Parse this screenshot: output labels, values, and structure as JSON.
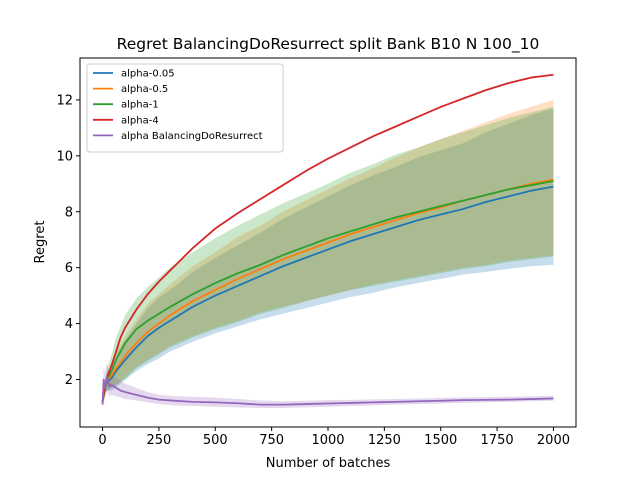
{
  "chart_data": {
    "type": "line",
    "title": "Regret BalancingDoResurrect split Bank B10 N 100_10",
    "xlabel": "Number of batches",
    "ylabel": "Regret",
    "xlim": [
      -100,
      2100
    ],
    "ylim": [
      0.3,
      13.5
    ],
    "xticks": [
      0,
      250,
      500,
      750,
      1000,
      1250,
      1500,
      1750,
      2000
    ],
    "yticks": [
      2,
      4,
      6,
      8,
      10,
      12
    ],
    "legend_position": "top-left",
    "grid": false,
    "series": [
      {
        "name": "alpha-0.05",
        "color": "#1f77b4",
        "x": [
          0,
          10,
          20,
          40,
          60,
          80,
          100,
          150,
          200,
          250,
          300,
          400,
          500,
          600,
          700,
          800,
          900,
          1000,
          1100,
          1200,
          1300,
          1400,
          1500,
          1600,
          1700,
          1800,
          1900,
          2000
        ],
        "y": [
          1.2,
          1.6,
          1.9,
          2.05,
          2.3,
          2.5,
          2.7,
          3.15,
          3.55,
          3.85,
          4.1,
          4.6,
          5.0,
          5.35,
          5.7,
          6.05,
          6.35,
          6.65,
          6.95,
          7.2,
          7.45,
          7.7,
          7.9,
          8.1,
          8.35,
          8.55,
          8.75,
          8.9
        ],
        "band_lower": [
          1.2,
          1.5,
          1.6,
          1.6,
          1.7,
          1.85,
          2.0,
          2.3,
          2.55,
          2.75,
          3.0,
          3.35,
          3.65,
          3.9,
          4.15,
          4.35,
          4.55,
          4.75,
          4.95,
          5.1,
          5.3,
          5.45,
          5.6,
          5.75,
          5.85,
          5.95,
          6.05,
          6.1
        ],
        "band_upper": [
          1.2,
          1.8,
          2.2,
          2.5,
          2.9,
          3.15,
          3.4,
          4.0,
          4.55,
          4.95,
          5.2,
          5.85,
          6.35,
          6.8,
          7.25,
          7.75,
          8.15,
          8.55,
          8.95,
          9.3,
          9.6,
          9.95,
          10.2,
          10.45,
          10.85,
          11.15,
          11.45,
          11.7
        ]
      },
      {
        "name": "alpha-0.5",
        "color": "#ff7f0e",
        "x": [
          0,
          10,
          20,
          40,
          60,
          80,
          100,
          150,
          200,
          250,
          300,
          400,
          500,
          600,
          700,
          800,
          900,
          1000,
          1100,
          1200,
          1300,
          1400,
          1500,
          1600,
          1700,
          1800,
          1900,
          2000
        ],
        "y": [
          1.2,
          1.65,
          1.95,
          2.15,
          2.4,
          2.6,
          2.85,
          3.3,
          3.7,
          4.0,
          4.3,
          4.8,
          5.2,
          5.6,
          5.95,
          6.3,
          6.6,
          6.9,
          7.2,
          7.45,
          7.7,
          7.95,
          8.15,
          8.4,
          8.6,
          8.8,
          9.0,
          9.15
        ],
        "band_lower": [
          1.2,
          1.5,
          1.65,
          1.7,
          1.8,
          1.95,
          2.1,
          2.45,
          2.7,
          2.95,
          3.2,
          3.55,
          3.85,
          4.1,
          4.4,
          4.6,
          4.8,
          5.0,
          5.2,
          5.4,
          5.55,
          5.7,
          5.85,
          6.0,
          6.1,
          6.25,
          6.35,
          6.45
        ],
        "band_upper": [
          1.2,
          1.8,
          2.25,
          2.6,
          3.0,
          3.25,
          3.55,
          4.15,
          4.7,
          5.05,
          5.4,
          6.05,
          6.55,
          7.1,
          7.5,
          8.0,
          8.4,
          8.8,
          9.2,
          9.55,
          9.95,
          10.3,
          10.6,
          10.9,
          11.2,
          11.5,
          11.75,
          12.0
        ]
      },
      {
        "name": "alpha-1",
        "color": "#2ca02c",
        "x": [
          0,
          10,
          20,
          40,
          60,
          80,
          100,
          150,
          200,
          250,
          300,
          400,
          500,
          600,
          700,
          800,
          900,
          1000,
          1100,
          1200,
          1300,
          1400,
          1500,
          1600,
          1700,
          1800,
          1900,
          2000
        ],
        "y": [
          1.2,
          1.7,
          2.0,
          2.3,
          2.7,
          3.0,
          3.3,
          3.8,
          4.1,
          4.35,
          4.6,
          5.05,
          5.45,
          5.8,
          6.1,
          6.45,
          6.75,
          7.05,
          7.3,
          7.55,
          7.8,
          8.0,
          8.2,
          8.4,
          8.6,
          8.8,
          8.95,
          9.1
        ],
        "band_lower": [
          1.2,
          1.5,
          1.6,
          1.7,
          1.8,
          1.9,
          2.0,
          2.4,
          2.65,
          2.9,
          3.15,
          3.5,
          3.8,
          4.05,
          4.35,
          4.55,
          4.8,
          5.0,
          5.2,
          5.35,
          5.5,
          5.65,
          5.8,
          5.95,
          6.05,
          6.2,
          6.3,
          6.4
        ],
        "band_upper": [
          1.2,
          1.9,
          2.4,
          2.9,
          3.5,
          3.9,
          4.3,
          4.9,
          5.3,
          5.65,
          6.0,
          6.55,
          7.05,
          7.5,
          7.9,
          8.3,
          8.65,
          9.0,
          9.4,
          9.7,
          10.05,
          10.3,
          10.6,
          10.85,
          11.1,
          11.35,
          11.55,
          11.75
        ]
      },
      {
        "name": "alpha-4",
        "color": "#d62728",
        "x": [
          0,
          10,
          20,
          40,
          60,
          80,
          100,
          150,
          200,
          250,
          300,
          400,
          500,
          600,
          700,
          800,
          900,
          1000,
          1100,
          1200,
          1300,
          1400,
          1500,
          1600,
          1700,
          1800,
          1900,
          2000
        ],
        "y": [
          1.2,
          1.75,
          2.1,
          2.5,
          3.0,
          3.5,
          3.85,
          4.5,
          5.05,
          5.5,
          5.9,
          6.7,
          7.4,
          7.95,
          8.45,
          8.95,
          9.45,
          9.9,
          10.3,
          10.7,
          11.05,
          11.4,
          11.75,
          12.05,
          12.35,
          12.6,
          12.8,
          12.9
        ]
      },
      {
        "name": "alpha BalancingDoResurrect",
        "color": "#9467bd",
        "x": [
          0,
          5,
          10,
          20,
          30,
          40,
          60,
          80,
          100,
          150,
          200,
          250,
          300,
          400,
          500,
          600,
          700,
          800,
          900,
          1000,
          1100,
          1200,
          1300,
          1400,
          1500,
          1600,
          1700,
          1800,
          1900,
          2000
        ],
        "y": [
          1.1,
          2.0,
          1.7,
          2.1,
          1.75,
          1.8,
          1.7,
          1.6,
          1.55,
          1.45,
          1.35,
          1.28,
          1.25,
          1.2,
          1.18,
          1.15,
          1.1,
          1.1,
          1.12,
          1.14,
          1.16,
          1.18,
          1.2,
          1.22,
          1.24,
          1.26,
          1.27,
          1.28,
          1.3,
          1.32
        ],
        "band_lower": [
          1.1,
          1.5,
          1.3,
          1.6,
          1.4,
          1.45,
          1.4,
          1.35,
          1.3,
          1.25,
          1.18,
          1.12,
          1.08,
          1.05,
          1.02,
          1.0,
          0.98,
          0.98,
          1.0,
          1.02,
          1.05,
          1.07,
          1.1,
          1.12,
          1.14,
          1.16,
          1.18,
          1.2,
          1.22,
          1.24
        ],
        "band_upper": [
          1.1,
          2.5,
          2.2,
          2.6,
          2.2,
          2.2,
          2.05,
          1.95,
          1.85,
          1.7,
          1.55,
          1.45,
          1.42,
          1.38,
          1.35,
          1.3,
          1.25,
          1.22,
          1.24,
          1.26,
          1.27,
          1.29,
          1.3,
          1.32,
          1.34,
          1.36,
          1.37,
          1.38,
          1.4,
          1.42
        ]
      }
    ]
  }
}
